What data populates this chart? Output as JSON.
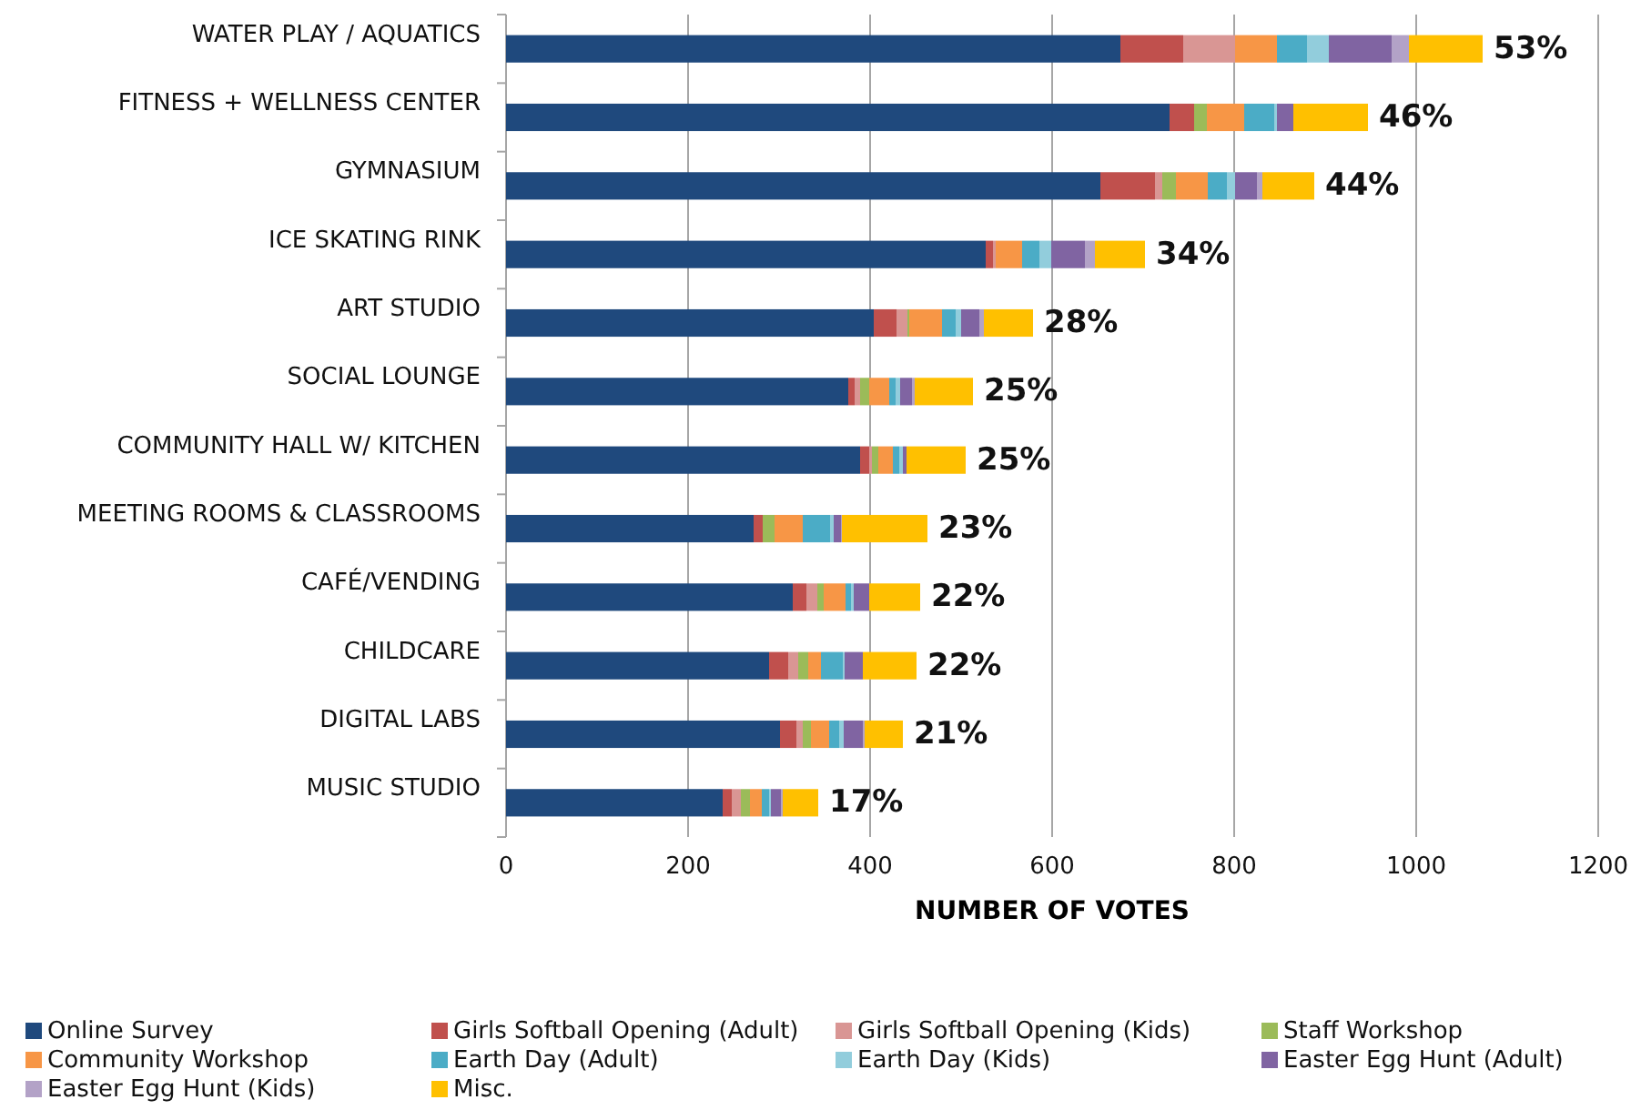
{
  "chart_data": {
    "type": "bar",
    "orientation": "horizontal",
    "stacked": true,
    "xlabel": "NUMBER OF VOTES",
    "categories": [
      "WATER PLAY / AQUATICS",
      "FITNESS + WELLNESS CENTER",
      "GYMNASIUM",
      "ICE SKATING RINK",
      "ART STUDIO",
      "SOCIAL LOUNGE",
      "COMMUNITY HALL W/ KITCHEN",
      "MEETING ROOMS & CLASSROOMS",
      "CAFÉ/VENDING",
      "CHILDCARE",
      "DIGITAL LABS",
      "MUSIC STUDIO"
    ],
    "series": [
      {
        "name": "Online Survey",
        "color": "#1f497d",
        "values": [
          675,
          729,
          653,
          527,
          404,
          376,
          389,
          272,
          315,
          289,
          301,
          238
        ]
      },
      {
        "name": "Girls Softball Opening (Adult)",
        "color": "#c0504d",
        "values": [
          69,
          27,
          60,
          8,
          25,
          7,
          10,
          10,
          15,
          21,
          18,
          10
        ]
      },
      {
        "name": "Girls Softball Opening (Kids)",
        "color": "#d99694",
        "values": [
          57,
          0,
          8,
          3,
          12,
          6,
          3,
          0,
          12,
          11,
          7,
          10
        ]
      },
      {
        "name": "Staff Workshop",
        "color": "#9bbb59",
        "values": [
          0,
          14,
          15,
          0,
          2,
          10,
          7,
          13,
          7,
          11,
          9,
          10
        ]
      },
      {
        "name": "Community Workshop",
        "color": "#f79646",
        "values": [
          46,
          41,
          35,
          29,
          36,
          22,
          16,
          31,
          24,
          14,
          20,
          13
        ]
      },
      {
        "name": "Earth Day (Adult)",
        "color": "#4bacc6",
        "values": [
          33,
          33,
          21,
          19,
          15,
          7,
          7,
          30,
          6,
          24,
          11,
          8
        ]
      },
      {
        "name": "Earth Day (Kids)",
        "color": "#92cddc",
        "values": [
          24,
          3,
          9,
          13,
          6,
          5,
          4,
          4,
          3,
          2,
          5,
          2
        ]
      },
      {
        "name": "Easter Egg Hunt (Adult)",
        "color": "#8064a2",
        "values": [
          69,
          18,
          24,
          37,
          20,
          13,
          4,
          8,
          17,
          20,
          21,
          11
        ]
      },
      {
        "name": "Easter Egg Hunt (Kids)",
        "color": "#b3a2c7",
        "values": [
          19,
          0,
          6,
          11,
          5,
          3,
          0,
          1,
          0,
          0,
          2,
          2
        ]
      },
      {
        "name": "Misc.",
        "color": "#ffc000",
        "values": [
          81,
          82,
          57,
          55,
          54,
          64,
          65,
          94,
          56,
          59,
          42,
          39
        ]
      }
    ],
    "annotations": [
      {
        "text": "53%",
        "x": 1073,
        "y": "WATER PLAY / AQUATICS"
      },
      {
        "text": "46%",
        "x": 947,
        "y": "FITNESS + WELLNESS CENTER"
      },
      {
        "text": "44%",
        "x": 888,
        "y": "GYMNASIUM"
      },
      {
        "text": "34%",
        "x": 702,
        "y": "ICE SKATING RINK"
      },
      {
        "text": "28%",
        "x": 579,
        "y": "ART STUDIO"
      },
      {
        "text": "25%",
        "x": 513,
        "y": "SOCIAL LOUNGE"
      },
      {
        "text": "25%",
        "x": 505,
        "y": "COMMUNITY HALL W/ KITCHEN"
      },
      {
        "text": "23%",
        "x": 463,
        "y": "MEETING ROOMS & CLASSROOMS"
      },
      {
        "text": "22%",
        "x": 455,
        "y": "CAFÉ/VENDING"
      },
      {
        "text": "22%",
        "x": 451,
        "y": "CHILDCARE"
      },
      {
        "text": "21%",
        "x": 436,
        "y": "DIGITAL LABS"
      },
      {
        "text": "17%",
        "x": 343,
        "y": "MUSIC STUDIO"
      }
    ],
    "xlim": [
      0,
      1200
    ],
    "xticks": [
      0,
      200,
      400,
      600,
      800,
      1000,
      1200
    ],
    "grid": "x",
    "legend": "bottom"
  }
}
